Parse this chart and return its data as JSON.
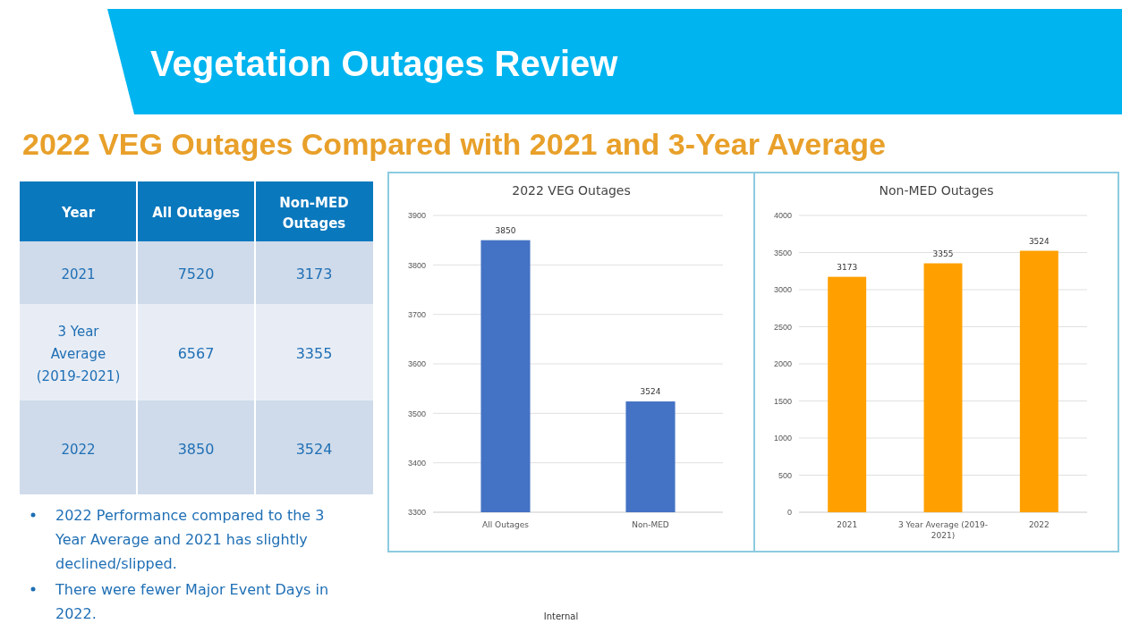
{
  "chart_data": [
    {
      "type": "other",
      "title": "Vegetation Outages Review",
      "subtitle": "2022 VEG Outages Compared with 2021 and 3-Year Average",
      "xlabel": "Year",
      "categories": [
        "2021",
        "3 Year Average (2019-2021)",
        "2022"
      ],
      "series": [
        {
          "name": "All Outages",
          "colors": [
            "#cfdbea",
            "#e8edf5",
            "#cfdbea"
          ],
          "values": [
            7520,
            6567,
            3850
          ]
        },
        {
          "name": "Non-MED Outages",
          "colors": [
            "#cfdbea",
            "#e8edf5",
            "#cfdbea"
          ],
          "values": [
            3173,
            3355,
            3524
          ]
        }
      ],
      "data_labels": true,
      "annotations": [
        "2022 Performance compared to the 3 Year Average and 2021 has slightly declined/slipped.",
        "There were fewer Major Event Days in 2022.",
        "Internal"
      ]
    },
    {
      "type": "bar",
      "title": "2022 VEG Outages",
      "categories": [
        "All Outages",
        "Non-MED"
      ],
      "values": [
        3850,
        3524
      ],
      "color": "#4472c4",
      "ylim": [
        3300,
        3900
      ],
      "yticks": [
        3300,
        3400,
        3500,
        3600,
        3700,
        3800,
        3900
      ],
      "grid": "y",
      "data_labels": true
    },
    {
      "type": "bar",
      "title": "Non-MED Outages",
      "categories": [
        "2021",
        "3 Year Average (2019-2021)",
        "2022"
      ],
      "values": [
        3173,
        3355,
        3524
      ],
      "color": "#ffa000",
      "ylim": [
        0,
        4000
      ],
      "yticks": [
        0,
        500,
        1000,
        1500,
        2000,
        2500,
        3000,
        3500,
        4000
      ],
      "grid": "y",
      "data_labels": true
    }
  ]
}
